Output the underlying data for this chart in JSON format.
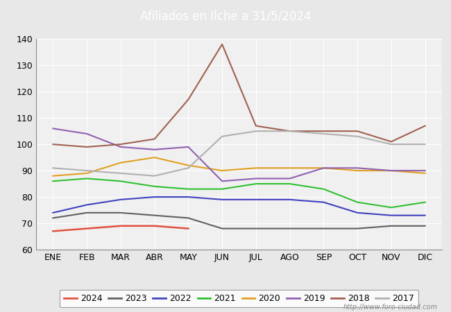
{
  "title": "Afiliados en Ilche a 31/5/2024",
  "title_color": "white",
  "title_bg_color": "#4472c4",
  "months": [
    "ENE",
    "FEB",
    "MAR",
    "ABR",
    "MAY",
    "JUN",
    "JUL",
    "AGO",
    "SEP",
    "OCT",
    "NOV",
    "DIC"
  ],
  "ylim": [
    60,
    140
  ],
  "yticks": [
    60,
    70,
    80,
    90,
    100,
    110,
    120,
    130,
    140
  ],
  "series": {
    "2024": {
      "color": "#e05040",
      "data": [
        67,
        68,
        69,
        69,
        68,
        null,
        null,
        null,
        null,
        null,
        null,
        null
      ],
      "lw": 1.8
    },
    "2023": {
      "color": "#606060",
      "data": [
        72,
        74,
        74,
        73,
        72,
        68,
        68,
        68,
        68,
        68,
        69,
        69
      ],
      "lw": 1.5
    },
    "2022": {
      "color": "#4040c0",
      "data": [
        74,
        77,
        79,
        80,
        80,
        79,
        79,
        79,
        78,
        74,
        73,
        73
      ],
      "lw": 1.5
    },
    "2021": {
      "color": "#30c030",
      "data": [
        86,
        87,
        86,
        84,
        83,
        83,
        85,
        85,
        83,
        78,
        76,
        78
      ],
      "lw": 1.5
    },
    "2020": {
      "color": "#e0a020",
      "data": [
        88,
        89,
        93,
        95,
        92,
        90,
        91,
        91,
        91,
        90,
        90,
        89
      ],
      "lw": 1.5
    },
    "2019": {
      "color": "#9060b0",
      "data": [
        106,
        104,
        99,
        98,
        99,
        86,
        87,
        87,
        91,
        91,
        90,
        90
      ],
      "lw": 1.5
    },
    "2018": {
      "color": "#a06050",
      "data": [
        100,
        99,
        100,
        102,
        117,
        138,
        107,
        105,
        105,
        105,
        101,
        107
      ],
      "lw": 1.5
    },
    "2017": {
      "color": "#b0b0b0",
      "data": [
        91,
        90,
        89,
        88,
        91,
        103,
        105,
        105,
        104,
        103,
        100,
        100
      ],
      "lw": 1.5
    }
  },
  "legend_order": [
    "2024",
    "2023",
    "2022",
    "2021",
    "2020",
    "2019",
    "2018",
    "2017"
  ],
  "watermark": "http://www.foro-ciudad.com",
  "bg_color": "#e8e8e8",
  "plot_bg_color": "#f0f0f0",
  "grid_color": "#ffffff"
}
